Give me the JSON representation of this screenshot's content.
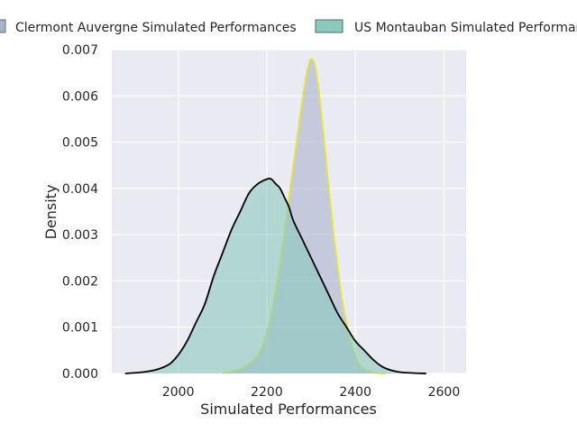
{
  "chart_data": {
    "type": "area",
    "title": "",
    "xlabel": "Simulated Performances",
    "ylabel": "Density",
    "xlim": [
      1850,
      2650
    ],
    "ylim": [
      0,
      0.007
    ],
    "xticks": [
      2000,
      2200,
      2400,
      2600
    ],
    "yticks": [
      0.0,
      0.001,
      0.002,
      0.003,
      0.004,
      0.005,
      0.006,
      0.007
    ],
    "ytick_labels": [
      "0.000",
      "0.001",
      "0.002",
      "0.003",
      "0.004",
      "0.005",
      "0.006",
      "0.007"
    ],
    "grid": true,
    "legend_position": "top",
    "series": [
      {
        "name": "Clermont Auvergne Simulated Performances",
        "fill": "#aab2cb",
        "line": "#e6e63a",
        "x": [
          2100,
          2140,
          2160,
          2180,
          2190,
          2200,
          2210,
          2220,
          2230,
          2240,
          2250,
          2260,
          2270,
          2280,
          2290,
          2300,
          2310,
          2320,
          2330,
          2340,
          2350,
          2360,
          2370,
          2380,
          2390,
          2400,
          2410,
          2420,
          2440,
          2470
        ],
        "y": [
          0.0,
          0.0001,
          0.0002,
          0.0004,
          0.0006,
          0.0009,
          0.0013,
          0.0018,
          0.0024,
          0.0031,
          0.0038,
          0.0045,
          0.0052,
          0.0059,
          0.0065,
          0.0068,
          0.0066,
          0.0059,
          0.005,
          0.004,
          0.0031,
          0.0023,
          0.0016,
          0.0011,
          0.0007,
          0.0004,
          0.0002,
          0.0001,
          2e-05,
          0.0
        ]
      },
      {
        "name": "US Montauban Simulated Performances",
        "fill": "#8cc9bd",
        "line": "#000000",
        "x": [
          1880,
          1920,
          1950,
          1980,
          2000,
          2020,
          2040,
          2060,
          2080,
          2100,
          2120,
          2140,
          2160,
          2180,
          2200,
          2210,
          2220,
          2230,
          2240,
          2250,
          2260,
          2280,
          2300,
          2320,
          2340,
          2360,
          2380,
          2400,
          2420,
          2440,
          2460,
          2480,
          2500,
          2530,
          2560
        ],
        "y": [
          0.0,
          3e-05,
          8e-05,
          0.0002,
          0.0004,
          0.0007,
          0.0011,
          0.0015,
          0.0021,
          0.0026,
          0.0031,
          0.0035,
          0.0039,
          0.0041,
          0.0042,
          0.0042,
          0.0041,
          0.004,
          0.0038,
          0.0036,
          0.0033,
          0.0029,
          0.0025,
          0.0021,
          0.0017,
          0.0013,
          0.001,
          0.0007,
          0.0005,
          0.0003,
          0.00015,
          7e-05,
          3e-05,
          1e-05,
          0.0
        ]
      }
    ]
  }
}
